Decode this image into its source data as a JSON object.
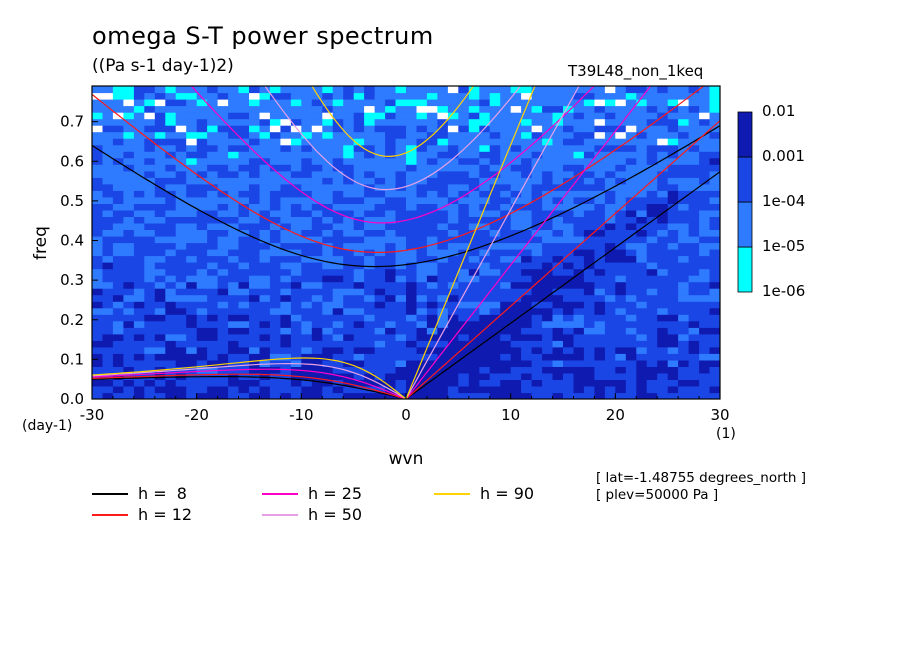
{
  "chart_data": {
    "type": "heatmap",
    "title": "omega S-T power spectrum",
    "units": "((Pa s-1 day-1)2)",
    "run_label": "T39L48_non_1keq",
    "xlabel": "wvn",
    "ylabel": "freq",
    "x_unit": "(1)",
    "y_unit": "(day-1)",
    "xlim": [
      -30,
      30
    ],
    "ylim": [
      0,
      0.79
    ],
    "xticks": [
      "-30",
      "-20",
      "-10",
      "0",
      "10",
      "20",
      "30"
    ],
    "yticks": [
      "0.0",
      "0.1",
      "0.2",
      "0.3",
      "0.4",
      "0.5",
      "0.6",
      "0.7"
    ],
    "colorbar": {
      "levels": [
        "1e-06",
        "1e-05",
        "1e-04",
        "0.001",
        "0.01"
      ],
      "colors": [
        "#00ffff",
        "#2e7bff",
        "#1b46e6",
        "#0f1ab0",
        "#5818b0"
      ]
    },
    "dispersion_curves": [
      {
        "name": "h =  8",
        "h": 8,
        "color": "#000000"
      },
      {
        "name": "h = 12",
        "h": 12,
        "color": "#ff1a1a"
      },
      {
        "name": "h = 25",
        "h": 25,
        "color": "#ff00c8"
      },
      {
        "name": "h = 50",
        "h": 50,
        "color": "#e6a0e6"
      },
      {
        "name": "h = 90",
        "h": 90,
        "color": "#ffd400"
      }
    ],
    "annotations": [
      "[ lat=-1.48755 degrees_north ]",
      "[ plev=50000 Pa ]"
    ]
  }
}
